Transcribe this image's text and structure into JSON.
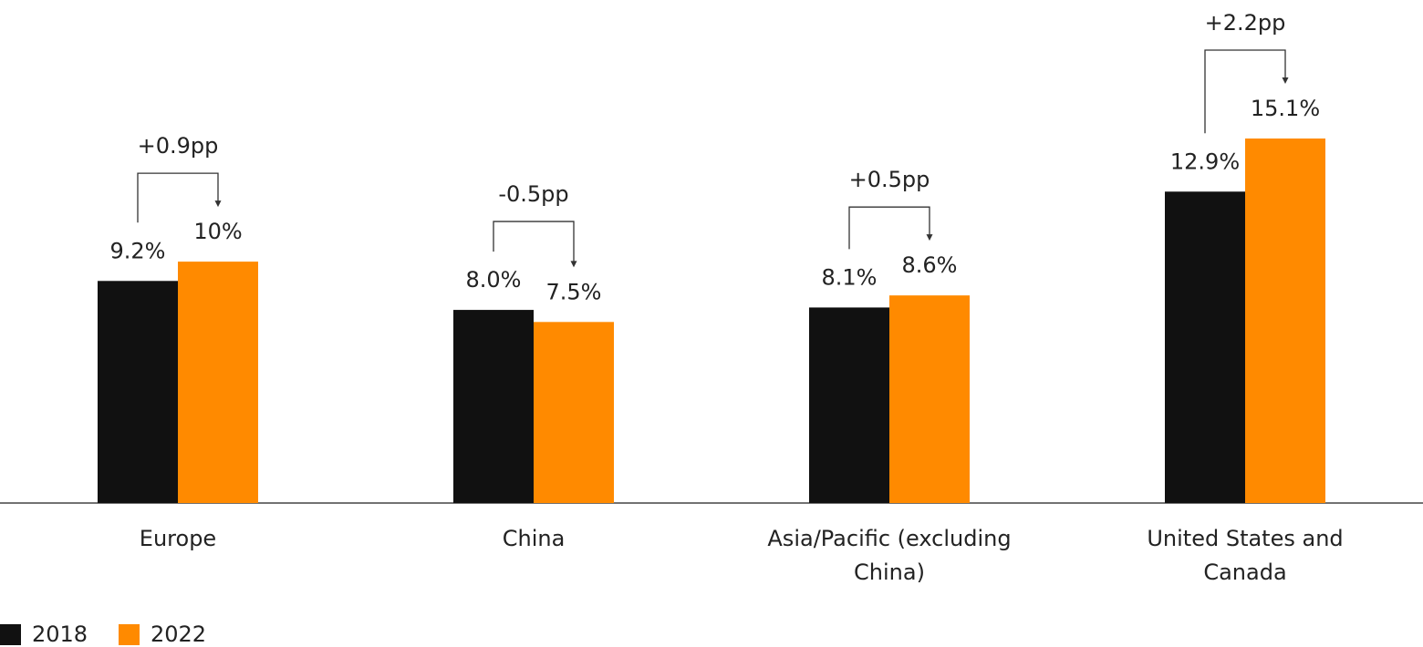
{
  "chart_data": {
    "type": "bar",
    "categories": [
      "Europe",
      "China",
      "Asia/Pacific (excluding China)",
      "United States and Canada"
    ],
    "series": [
      {
        "name": "2018",
        "color": "#111111",
        "values": [
          9.2,
          8.0,
          8.1,
          12.9
        ],
        "value_labels": [
          "9.2%",
          "8.0%",
          "8.1%",
          "12.9%"
        ]
      },
      {
        "name": "2022",
        "color": "#ff8a00",
        "values": [
          10,
          7.5,
          8.6,
          15.1
        ],
        "value_labels": [
          "10%",
          "7.5%",
          "8.6%",
          "15.1%"
        ]
      }
    ],
    "annotations": [
      "+0.9pp",
      "-0.5pp",
      "+0.5pp",
      "+2.2pp"
    ],
    "legend": "bottom-left"
  }
}
